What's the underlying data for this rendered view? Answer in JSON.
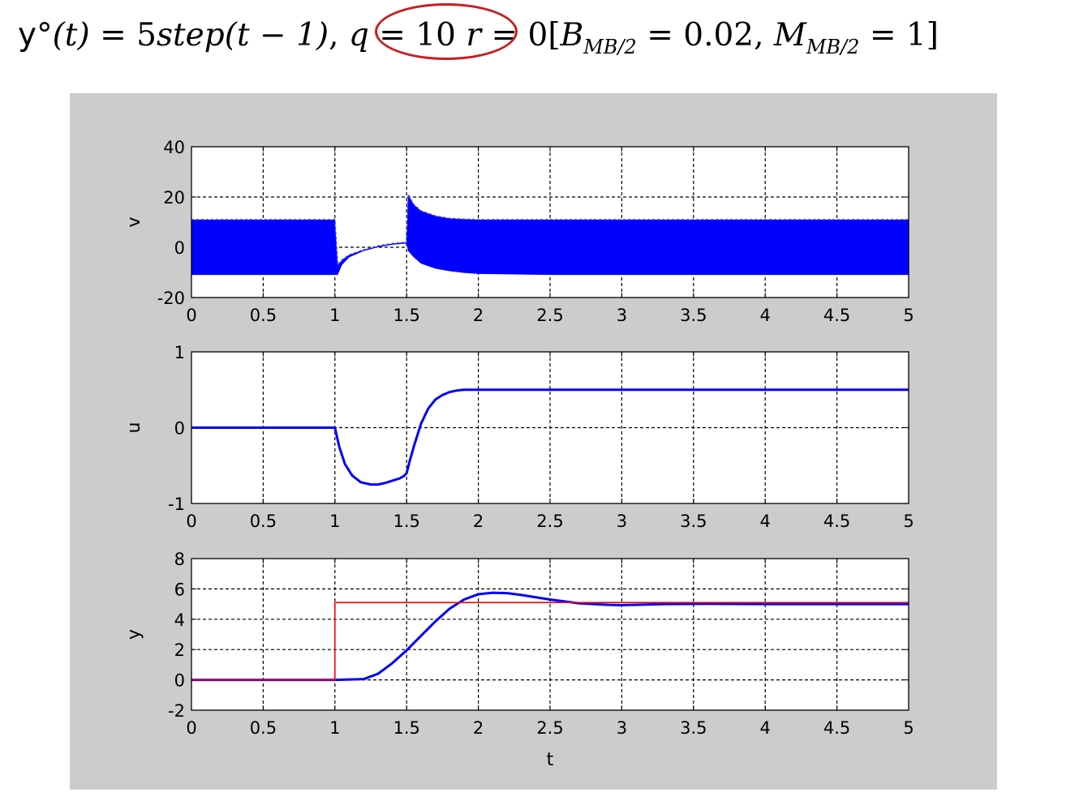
{
  "header": {
    "lead": "y°",
    "t1": "(t)",
    "eq1": " = 5",
    "fn": "step",
    "arg": "(t − 1)",
    "sep1": ", ",
    "q": "q",
    "eq2": " = 10",
    "sep2": " ",
    "r": "r",
    "eq3": " = 0[",
    "b": "B",
    "b_sub": "MB/2",
    "eq4": " = 0.02, ",
    "m": "M",
    "m_sub": "MB/2",
    "eq5": " = 1]",
    "highlight_color": "#c81e1e"
  },
  "chart_data": [
    {
      "type": "line",
      "ylabel": "v",
      "xlabel": "",
      "xlim": [
        0,
        5
      ],
      "ylim": [
        -20,
        40
      ],
      "xticks": [
        "0",
        "0.5",
        "1",
        "1.5",
        "2",
        "2.5",
        "3",
        "3.5",
        "4",
        "4.5",
        "5"
      ],
      "yticks": [
        "-20",
        "0",
        "20",
        "40"
      ],
      "grid": true,
      "series": [
        {
          "color": "#0000ff",
          "style": "chattering band between upper and lower envelopes",
          "x": [
            0,
            1,
            1.02,
            1.05,
            1.1,
            1.2,
            1.3,
            1.4,
            1.5,
            1.51,
            1.55,
            1.6,
            1.7,
            1.8,
            1.9,
            2.0,
            2.5,
            3.0,
            5.0
          ],
          "upper": [
            11,
            11,
            -7,
            -5,
            -3,
            -1,
            0.5,
            1.5,
            2,
            21,
            17,
            14.5,
            12.5,
            11.5,
            11.2,
            11,
            11,
            11,
            11
          ],
          "lower": [
            -11,
            -11,
            -11,
            -7,
            -4,
            -1.5,
            0,
            1,
            1.5,
            -1.5,
            -4,
            -6.5,
            -8.5,
            -9.5,
            -10.2,
            -10.6,
            -11,
            -11,
            -11
          ]
        }
      ]
    },
    {
      "type": "line",
      "ylabel": "u",
      "xlabel": "",
      "xlim": [
        0,
        5
      ],
      "ylim": [
        -1,
        1
      ],
      "xticks": [
        "0",
        "0.5",
        "1",
        "1.5",
        "2",
        "2.5",
        "3",
        "3.5",
        "4",
        "4.5",
        "5"
      ],
      "yticks": [
        "-1",
        "0",
        "1"
      ],
      "grid": true,
      "series": [
        {
          "color": "#0000ff",
          "x": [
            0,
            1,
            1.03,
            1.07,
            1.12,
            1.18,
            1.25,
            1.3,
            1.35,
            1.4,
            1.45,
            1.48,
            1.5,
            1.52,
            1.55,
            1.6,
            1.65,
            1.7,
            1.75,
            1.8,
            1.85,
            1.9,
            2.0,
            2.5,
            5.0
          ],
          "y": [
            0,
            0,
            -0.25,
            -0.48,
            -0.63,
            -0.72,
            -0.75,
            -0.75,
            -0.73,
            -0.7,
            -0.67,
            -0.64,
            -0.6,
            -0.45,
            -0.25,
            0.05,
            0.25,
            0.37,
            0.43,
            0.47,
            0.49,
            0.5,
            0.5,
            0.5,
            0.5
          ]
        }
      ]
    },
    {
      "type": "line",
      "ylabel": "y",
      "xlabel": "t",
      "xlim": [
        0,
        5
      ],
      "ylim": [
        -2,
        8
      ],
      "xticks": [
        "0",
        "0.5",
        "1",
        "1.5",
        "2",
        "2.5",
        "3",
        "3.5",
        "4",
        "4.5",
        "5"
      ],
      "yticks": [
        "-2",
        "0",
        "2",
        "4",
        "6",
        "8"
      ],
      "grid": true,
      "series": [
        {
          "color": "#0000ff",
          "x": [
            0,
            1,
            1.2,
            1.3,
            1.4,
            1.5,
            1.6,
            1.7,
            1.8,
            1.9,
            2.0,
            2.1,
            2.2,
            2.3,
            2.5,
            2.7,
            2.9,
            3.0,
            3.1,
            3.3,
            3.6,
            4.0,
            5.0
          ],
          "y": [
            0,
            0,
            0.05,
            0.4,
            1.1,
            1.95,
            2.9,
            3.85,
            4.7,
            5.3,
            5.65,
            5.75,
            5.72,
            5.6,
            5.3,
            5.05,
            4.95,
            4.93,
            4.95,
            5.0,
            5.02,
            5.0,
            5.0
          ]
        },
        {
          "color": "#ff0000",
          "x": [
            0,
            1,
            1,
            5
          ],
          "y": [
            0,
            0,
            5.1,
            5.1
          ]
        }
      ]
    }
  ]
}
